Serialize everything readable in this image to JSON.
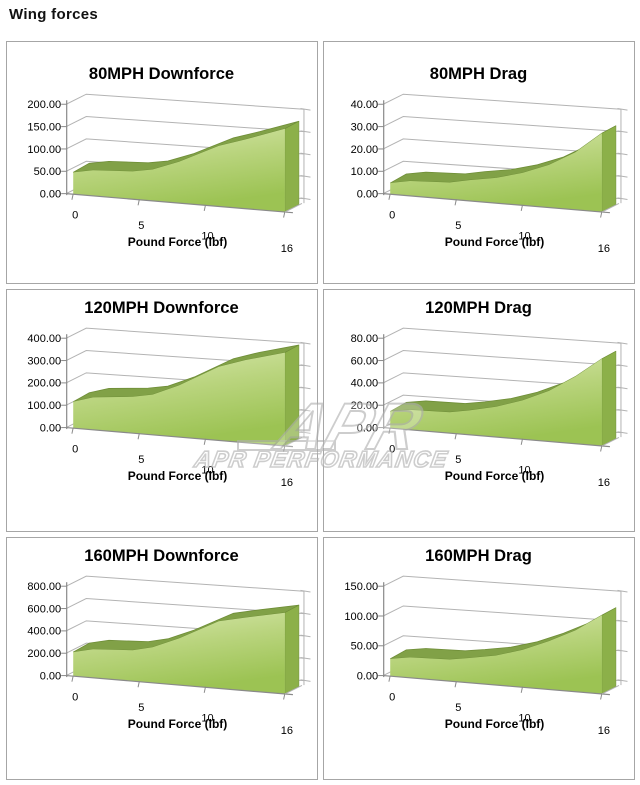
{
  "page": {
    "title": "Wing forces"
  },
  "watermark": {
    "logo_text": "APR",
    "brand_text": "APR PERFORMANCE"
  },
  "style": {
    "area_gradient": [
      "#d8e8ae",
      "#b9d47d",
      "#9cc353"
    ],
    "band": "#81a147",
    "band_edge": "#6f8e38",
    "side": "#8cb049",
    "grid": "#b3b3b3",
    "axis": "#8a8a8a",
    "text": "#000000",
    "panel_border": "#a6a6a6",
    "watermark": "#b0b0b0"
  },
  "chart_data": [
    {
      "type": "area",
      "title": "80MPH Downforce",
      "xlabel": "Pound Force (lbf)",
      "xlim": [
        0,
        16
      ],
      "ylim": [
        0,
        200
      ],
      "x": [
        0,
        1.5,
        4.5,
        6,
        8,
        11,
        13,
        16
      ],
      "values": [
        49,
        56,
        58,
        64,
        82,
        115,
        128,
        148
      ],
      "x_ticks": [
        {
          "v": 0,
          "label": "0"
        },
        {
          "v": 5,
          "label": "5"
        },
        {
          "v": 10,
          "label": "10"
        },
        {
          "v": 16,
          "label": "16"
        }
      ],
      "y_ticks": [
        "0.00",
        "50.00",
        "100.00",
        "150.00",
        "200.00"
      ]
    },
    {
      "type": "area",
      "title": "80MPH Drag",
      "xlabel": "Pound Force (lbf)",
      "xlim": [
        0,
        16
      ],
      "ylim": [
        0,
        40
      ],
      "x": [
        0,
        1.5,
        4.5,
        6,
        8,
        10,
        12,
        14,
        16
      ],
      "values": [
        5,
        6.5,
        7,
        8.5,
        10,
        12.5,
        16,
        21,
        28
      ],
      "x_ticks": [
        {
          "v": 0,
          "label": "0"
        },
        {
          "v": 5,
          "label": "5"
        },
        {
          "v": 10,
          "label": "10"
        },
        {
          "v": 16,
          "label": "16"
        }
      ],
      "y_ticks": [
        "0.00",
        "10.00",
        "20.00",
        "30.00",
        "40.00"
      ]
    },
    {
      "type": "area",
      "title": "120MPH Downforce",
      "xlabel": "Pound Force (lbf)",
      "xlim": [
        0,
        16
      ],
      "ylim": [
        0,
        400
      ],
      "x": [
        0,
        1.5,
        4.5,
        6,
        8,
        11,
        13,
        16
      ],
      "values": [
        118,
        142,
        152,
        164,
        205,
        280,
        305,
        332
      ],
      "x_ticks": [
        {
          "v": 0,
          "label": "0"
        },
        {
          "v": 5,
          "label": "5"
        },
        {
          "v": 10,
          "label": "10"
        },
        {
          "v": 16,
          "label": "16"
        }
      ],
      "y_ticks": [
        "0.00",
        "100.00",
        "200.00",
        "300.00",
        "400.00"
      ]
    },
    {
      "type": "area",
      "title": "120MPH Drag",
      "xlabel": "Pound Force (lbf)",
      "xlim": [
        0,
        16
      ],
      "ylim": [
        0,
        80
      ],
      "x": [
        0,
        1.5,
        4.5,
        6,
        8,
        10,
        12,
        14,
        16
      ],
      "values": [
        15,
        17.5,
        17.5,
        20,
        24,
        30,
        38,
        49,
        62
      ],
      "x_ticks": [
        {
          "v": 0,
          "label": "0"
        },
        {
          "v": 5,
          "label": "5"
        },
        {
          "v": 10,
          "label": "10"
        },
        {
          "v": 16,
          "label": "16"
        }
      ],
      "y_ticks": [
        "0.00",
        "20.00",
        "40.00",
        "60.00",
        "80.00"
      ]
    },
    {
      "type": "area",
      "title": "160MPH Downforce",
      "xlabel": "Pound Force (lbf)",
      "xlim": [
        0,
        16
      ],
      "ylim": [
        0,
        800
      ],
      "x": [
        0,
        1.5,
        4.5,
        6,
        8,
        11,
        13,
        16
      ],
      "values": [
        215,
        250,
        258,
        290,
        370,
        510,
        540,
        578
      ],
      "x_ticks": [
        {
          "v": 0,
          "label": "0"
        },
        {
          "v": 5,
          "label": "5"
        },
        {
          "v": 10,
          "label": "10"
        },
        {
          "v": 16,
          "label": "16"
        }
      ],
      "y_ticks": [
        "0.00",
        "200.00",
        "400.00",
        "600.00",
        "800.00"
      ]
    },
    {
      "type": "area",
      "title": "160MPH Drag",
      "xlabel": "Pound Force (lbf)",
      "xlim": [
        0,
        16
      ],
      "ylim": [
        0,
        150
      ],
      "x": [
        0,
        1.5,
        4.5,
        6,
        8,
        10,
        12,
        14,
        16
      ],
      "values": [
        29,
        33.5,
        34,
        38,
        44,
        54,
        68,
        84,
        105
      ],
      "x_ticks": [
        {
          "v": 0,
          "label": "0"
        },
        {
          "v": 5,
          "label": "5"
        },
        {
          "v": 10,
          "label": "10"
        },
        {
          "v": 16,
          "label": "16"
        }
      ],
      "y_ticks": [
        "0.00",
        "50.00",
        "100.00",
        "150.00"
      ]
    }
  ]
}
